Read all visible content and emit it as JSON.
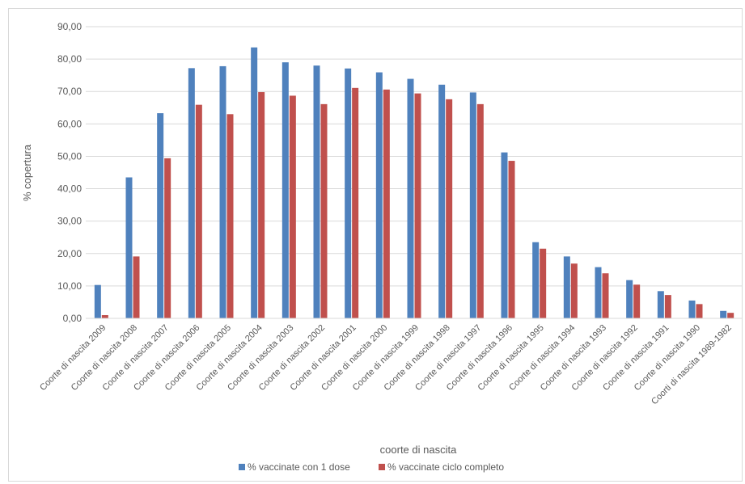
{
  "chart_data": {
    "type": "bar",
    "xlabel": "coorte di nascita",
    "ylabel": "% copertura",
    "ylim": [
      0,
      90
    ],
    "ytick_step": 10,
    "ytick_labels": [
      "0,00",
      "10,00",
      "20,00",
      "30,00",
      "40,00",
      "50,00",
      "60,00",
      "70,00",
      "80,00",
      "90,00"
    ],
    "grid": true,
    "legend_position": "bottom",
    "categories": [
      "Coorte di nascita 2009",
      "Coorte di nascita 2008",
      "Coorte di nascita 2007",
      "Coorte di nascita 2006",
      "Coorte di nascita 2005",
      "Coorte di nascita 2004",
      "Coorte di nascita 2003",
      "Coorte di nascita 2002",
      "Coorte di nascita 2001",
      "Coorte di nascita 2000",
      "Coorte di nascita 1999",
      "Coorte di nascita 1998",
      "Coorte di nascita 1997",
      "Coorte di nascita 1996",
      "Coorte di nascita 1995",
      "Coorte di nascita 1994",
      "Coorte di nascita 1993",
      "Coorte di nascita 1992",
      "Coorte di nascita 1991",
      "Coorte di nascita 1990",
      "Coorti di nascita 1989-1982"
    ],
    "series": [
      {
        "name": "% vaccinate con 1 dose",
        "color": "#4f81bd",
        "values": [
          10.3,
          43.5,
          63.3,
          77.2,
          77.8,
          83.6,
          79.0,
          78.0,
          77.1,
          75.9,
          73.9,
          72.1,
          69.7,
          51.2,
          23.5,
          19.1,
          15.8,
          11.8,
          8.4,
          5.5,
          2.3
        ]
      },
      {
        "name": "% vaccinate ciclo completo",
        "color": "#c0504d",
        "values": [
          1.0,
          19.1,
          49.4,
          65.9,
          63.0,
          69.8,
          68.7,
          66.1,
          71.1,
          70.6,
          69.4,
          67.6,
          66.1,
          48.6,
          21.5,
          16.9,
          13.9,
          10.4,
          7.2,
          4.4,
          1.7
        ]
      }
    ]
  }
}
